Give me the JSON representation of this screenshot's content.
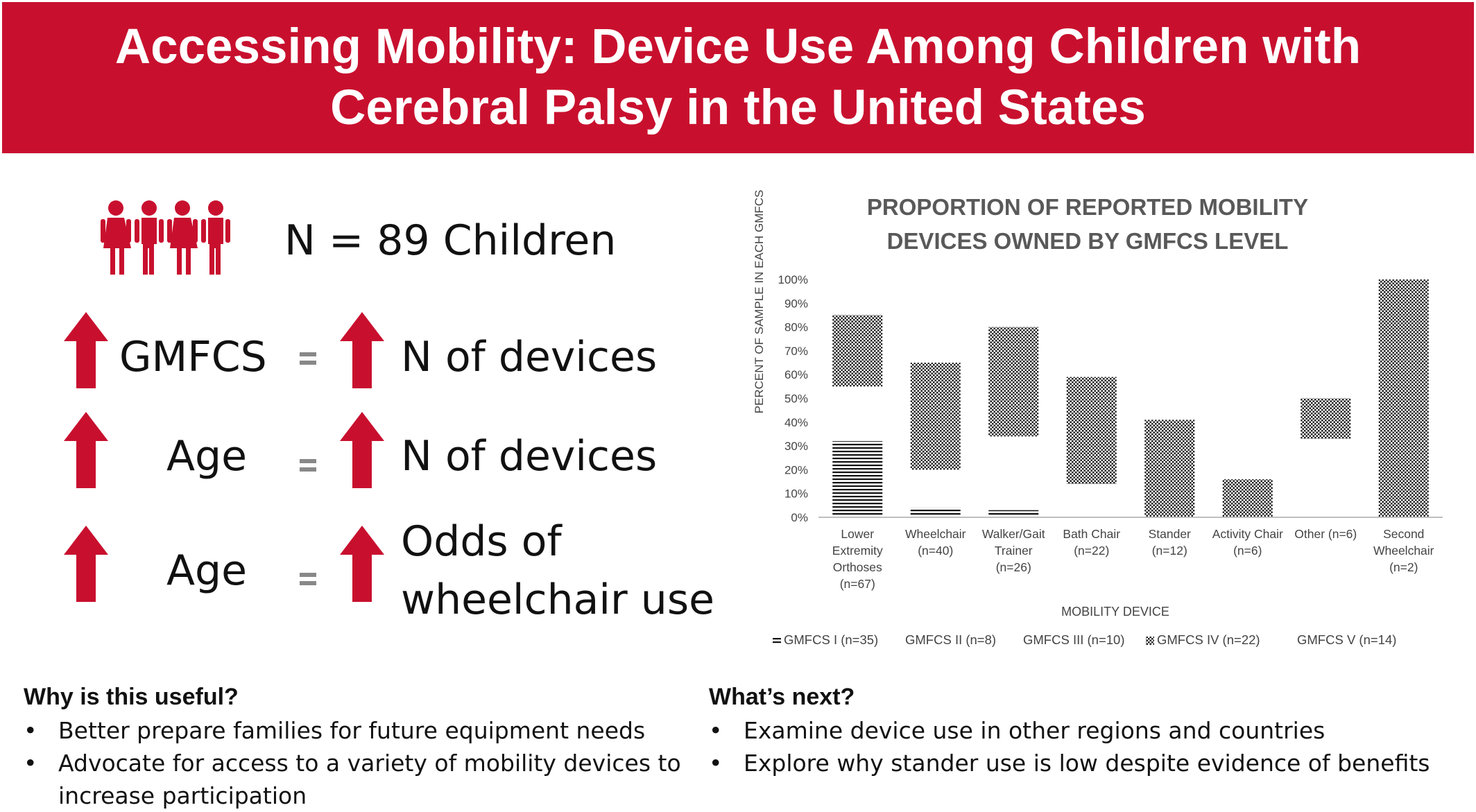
{
  "header": {
    "title": "Accessing Mobility: Device Use Among Children with Cerebral Palsy in the United States"
  },
  "summary": {
    "sample": "N = 89 Children",
    "findings": [
      {
        "left": "GMFCS",
        "right": "N of devices"
      },
      {
        "left": "Age",
        "right": "N of devices"
      },
      {
        "left": "Age",
        "right_line1": "Odds of",
        "right_line2": "wheelchair use"
      }
    ]
  },
  "why": {
    "heading": "Why is this useful?",
    "items": [
      "Better prepare families for future equipment needs",
      "Advocate for access to a variety of mobility devices to increase participation"
    ]
  },
  "next": {
    "heading": "What’s next?",
    "items": [
      "Examine device use in other regions and countries",
      "Explore why stander use is low despite evidence of benefits"
    ]
  },
  "colors": {
    "banner": "#c8102e",
    "arrow": "#c8102e",
    "figures": "#c8102e"
  },
  "chart_data": {
    "type": "bar",
    "stacked": true,
    "title_lines": [
      "PROPORTION OF REPORTED MOBILITY",
      "DEVICES OWNED BY GMFCS LEVEL"
    ],
    "xlabel": "MOBILITY DEVICE",
    "ylabel": "PERCENT OF SAMPLE IN EACH GMFCS",
    "ylim": [
      0,
      100
    ],
    "yticks": [
      "0%",
      "10%",
      "20%",
      "30%",
      "40%",
      "50%",
      "60%",
      "70%",
      "80%",
      "90%",
      "100%"
    ],
    "categories": [
      [
        "Lower",
        "Extremity",
        "Orthoses",
        "(n=67)"
      ],
      [
        "Wheelchair",
        "(n=40)"
      ],
      [
        "Walker/Gait",
        "Trainer",
        "(n=26)"
      ],
      [
        "Bath Chair",
        "(n=22)"
      ],
      [
        "Stander",
        "(n=12)"
      ],
      [
        "Activity Chair",
        "(n=6)"
      ],
      [
        "Other (n=6)"
      ],
      [
        "Second",
        "Wheelchair",
        "(n=2)"
      ]
    ],
    "series": [
      {
        "name": "GMFCS I (n=35)",
        "pattern": "hlines",
        "values": [
          32,
          4,
          3,
          0,
          0,
          0,
          0,
          0
        ]
      },
      {
        "name": "GMFCS II (n=8)",
        "pattern": "none",
        "values": [
          0,
          0,
          0,
          0,
          0,
          0,
          0,
          0
        ]
      },
      {
        "name": "GMFCS III (n=10)",
        "pattern": "none",
        "values": [
          23,
          16,
          31,
          14,
          0,
          0,
          33,
          0
        ]
      },
      {
        "name": "GMFCS IV (n=22)",
        "pattern": "checker",
        "values": [
          30,
          45,
          46,
          45,
          41,
          16,
          17,
          100
        ]
      },
      {
        "name": "GMFCS V (n=14)",
        "pattern": "none",
        "values": [
          0,
          0,
          0,
          0,
          0,
          0,
          0,
          0
        ]
      }
    ],
    "legend_position": "bottom",
    "grid": false
  }
}
